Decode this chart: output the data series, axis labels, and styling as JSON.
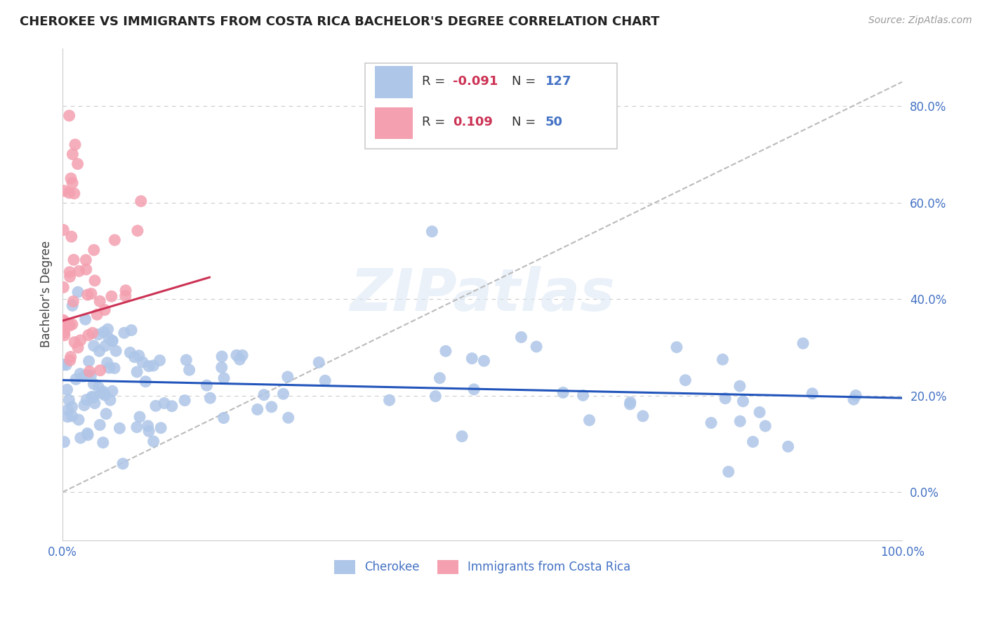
{
  "title": "CHEROKEE VS IMMIGRANTS FROM COSTA RICA BACHELOR'S DEGREE CORRELATION CHART",
  "source": "Source: ZipAtlas.com",
  "ylabel": "Bachelor's Degree",
  "cherokee_color": "#aec6e8",
  "costarica_color": "#f4a0b0",
  "cherokee_line_color": "#2255bb",
  "costarica_line_color": "#cc3355",
  "watermark": "ZIPatlas",
  "background_color": "#ffffff",
  "grid_color": "#cccccc",
  "xlim": [
    0.0,
    1.0
  ],
  "ylim": [
    -0.1,
    0.92
  ],
  "ytick_vals": [
    0.0,
    0.2,
    0.4,
    0.6,
    0.8
  ],
  "ytick_labels": [
    "0.0%",
    "20.0%",
    "40.0%",
    "60.0%",
    "80.0%"
  ],
  "xtick_vals": [
    0.0,
    0.2,
    0.4,
    0.6,
    0.8,
    1.0
  ],
  "xtick_labels": [
    "0.0%",
    "",
    "",
    "",
    "",
    "100.0%"
  ],
  "blue_line_x": [
    0.0,
    1.0
  ],
  "blue_line_y": [
    0.232,
    0.195
  ],
  "pink_line_x": [
    0.0,
    0.175
  ],
  "pink_line_y": [
    0.355,
    0.445
  ],
  "dash_line_x": [
    0.0,
    1.0
  ],
  "dash_line_y": [
    0.0,
    0.85
  ]
}
